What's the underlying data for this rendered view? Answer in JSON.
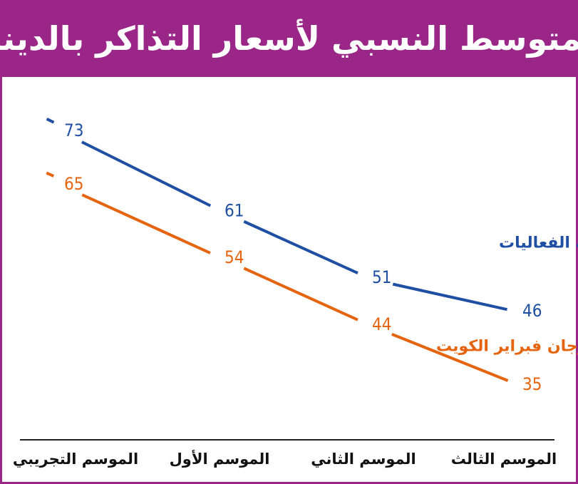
{
  "title": "المتوسط النسبي لأسعار التذاكر بالدينار",
  "colors": {
    "frame": "#9a2687",
    "series_all": "#1f4fa3",
    "series_excl": "#e5640f",
    "axis": "#222222"
  },
  "chart_data": {
    "type": "line",
    "title": "المتوسط النسبي لأسعار التذاكر بالدينار",
    "categories": [
      "الموسم التجريبي",
      "الموسم الأول",
      "الموسم الثاني",
      "الموسم الثالث"
    ],
    "series": [
      {
        "name": "كافة الفعاليات",
        "values": [
          73,
          61,
          51,
          46
        ],
        "color": "#1f4fa3"
      },
      {
        "name": "من غير مهرجان فبراير الكويت",
        "values": [
          65,
          54,
          44,
          35
        ],
        "color": "#e5640f"
      }
    ],
    "xlabel": "",
    "ylabel": "",
    "ylim": [
      30,
      78
    ],
    "grid": false,
    "legend": "inline"
  }
}
